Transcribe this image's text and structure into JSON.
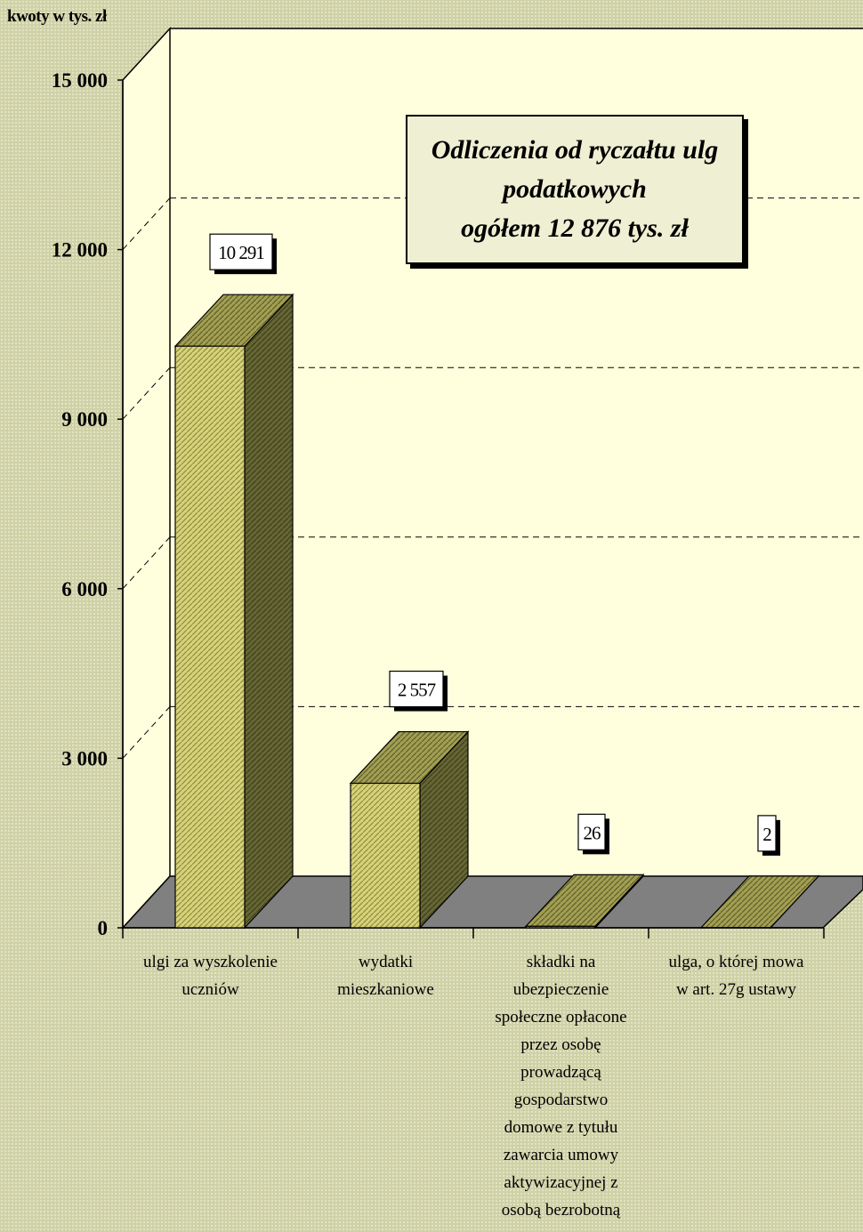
{
  "chart_data": {
    "type": "bar",
    "unit_label": "kwoty w tys. zł",
    "title_lines": [
      "Odliczenia od ryczałtu ulg",
      "podatkowych",
      "ogółem 12 876 tys. zł"
    ],
    "categories": [
      [
        "ulgi za wyszkolenie",
        "uczniów"
      ],
      [
        "wydatki",
        "mieszkaniowe"
      ],
      [
        "składki na",
        "ubezpieczenie",
        "społeczne opłacone",
        "przez osobę",
        "prowadzącą",
        "gospodarstwo",
        "domowe z tytułu",
        "zawarcia umowy",
        "aktywizacyjnej z",
        "osobą bezrobotną"
      ],
      [
        "ulga, o której mowa",
        "w art. 27g ustawy"
      ]
    ],
    "values": [
      10291,
      2557,
      26,
      2
    ],
    "data_labels": [
      "10 291",
      "2 557",
      "26",
      "2"
    ],
    "yticks": [
      0,
      3000,
      6000,
      9000,
      12000,
      15000
    ],
    "ytick_labels": [
      "0",
      "3 000",
      "6 000",
      "9 000",
      "12 000",
      "15 000"
    ],
    "ylim": [
      0,
      15000
    ],
    "grid": true,
    "colors": {
      "bar_front": "#c8c46a",
      "bar_top": "#96934a",
      "bar_side": "#5a5a2c",
      "floor": "#7f7f7f",
      "plot_bg": "#ffffdd"
    }
  }
}
